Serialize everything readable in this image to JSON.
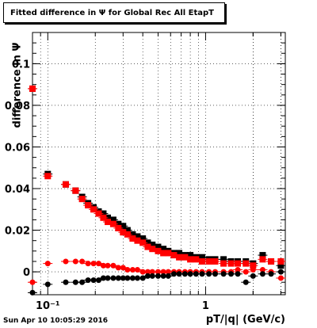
{
  "title": "Fitted difference in Ψ  for Global Rec All EtapT",
  "timestamp": "Sun Apr 10 10:05:29 2016",
  "chart_data": {
    "type": "scatter",
    "title": "Fitted difference in Ψ  for Global Rec All EtapT",
    "xlabel": "pT/|q| (GeV/c)",
    "ylabel": "difference in Ψ",
    "xscale": "log",
    "xlim": [
      0.08,
      3.2
    ],
    "ylim": [
      -0.011,
      0.115
    ],
    "grid": true,
    "y_ticks": [
      {
        "value": 0,
        "label": "0"
      },
      {
        "value": 0.02,
        "label": "0.02"
      },
      {
        "value": 0.04,
        "label": "0.04"
      },
      {
        "value": 0.06,
        "label": "0.06"
      },
      {
        "value": 0.08,
        "label": "0.08"
      },
      {
        "value": 0.1,
        "label": "0.1"
      }
    ],
    "x_ticks": [
      {
        "value": 0.1,
        "label": "10⁻¹"
      },
      {
        "value": 1,
        "label": "1"
      }
    ],
    "series": [
      {
        "color": "#000000",
        "marker": "square",
        "x": [
          0.08,
          0.1,
          0.13,
          0.15,
          0.165,
          0.18,
          0.195,
          0.21,
          0.225,
          0.24,
          0.26,
          0.28,
          0.3,
          0.32,
          0.345,
          0.37,
          0.4,
          0.43,
          0.46,
          0.5,
          0.54,
          0.58,
          0.63,
          0.68,
          0.74,
          0.8,
          0.87,
          0.95,
          1.05,
          1.15,
          1.3,
          1.45,
          1.6,
          1.8,
          2.0,
          2.3,
          2.6,
          3.0
        ],
        "y": [
          0.088,
          0.047,
          0.042,
          0.039,
          0.036,
          0.033,
          0.031,
          0.029,
          0.028,
          0.026,
          0.025,
          0.023,
          0.022,
          0.02,
          0.018,
          0.017,
          0.016,
          0.014,
          0.013,
          0.012,
          0.011,
          0.01,
          0.009,
          0.009,
          0.008,
          0.008,
          0.007,
          0.007,
          0.006,
          0.006,
          0.006,
          0.005,
          0.005,
          0.005,
          0.004,
          0.008,
          0.005,
          0.003
        ]
      },
      {
        "color": "#ff0000",
        "marker": "square",
        "x": [
          0.08,
          0.1,
          0.13,
          0.15,
          0.165,
          0.18,
          0.195,
          0.21,
          0.225,
          0.24,
          0.26,
          0.28,
          0.3,
          0.32,
          0.345,
          0.37,
          0.4,
          0.43,
          0.46,
          0.5,
          0.54,
          0.58,
          0.63,
          0.68,
          0.74,
          0.8,
          0.87,
          0.95,
          1.05,
          1.15,
          1.3,
          1.45,
          1.6,
          1.8,
          2.0,
          2.3,
          2.6,
          3.0
        ],
        "y": [
          0.088,
          0.046,
          0.042,
          0.039,
          0.035,
          0.032,
          0.03,
          0.028,
          0.026,
          0.024,
          0.023,
          0.021,
          0.019,
          0.018,
          0.016,
          0.015,
          0.014,
          0.012,
          0.011,
          0.01,
          0.009,
          0.009,
          0.008,
          0.007,
          0.007,
          0.006,
          0.006,
          0.005,
          0.005,
          0.005,
          0.004,
          0.004,
          0.004,
          0.004,
          0.003,
          0.006,
          0.005,
          0.005
        ]
      },
      {
        "color": "#ff0000",
        "marker": "circle",
        "x": [
          0.08,
          0.1,
          0.13,
          0.15,
          0.165,
          0.18,
          0.195,
          0.21,
          0.225,
          0.24,
          0.26,
          0.28,
          0.3,
          0.32,
          0.345,
          0.37,
          0.4,
          0.43,
          0.46,
          0.5,
          0.54,
          0.58,
          0.63,
          0.68,
          0.74,
          0.8,
          0.87,
          0.95,
          1.05,
          1.15,
          1.3,
          1.45,
          1.6,
          1.8,
          2.0,
          2.3,
          2.6,
          3.0
        ],
        "y": [
          -0.005,
          0.004,
          0.005,
          0.005,
          0.005,
          0.004,
          0.004,
          0.004,
          0.003,
          0.003,
          0.003,
          0.002,
          0.002,
          0.001,
          0.001,
          0.001,
          0.0,
          0.0,
          0.0,
          0.0,
          0.0,
          0.0,
          0.0,
          0.0,
          0.0,
          0.0,
          0.0,
          0.0,
          0.0,
          0.0,
          0.0,
          0.0,
          0.001,
          0.0,
          0.001,
          0.001,
          0.0,
          -0.003
        ]
      },
      {
        "color": "#000000",
        "marker": "circle",
        "x": [
          0.08,
          0.1,
          0.13,
          0.15,
          0.165,
          0.18,
          0.195,
          0.21,
          0.225,
          0.24,
          0.26,
          0.28,
          0.3,
          0.32,
          0.345,
          0.37,
          0.4,
          0.43,
          0.46,
          0.5,
          0.54,
          0.58,
          0.63,
          0.68,
          0.74,
          0.8,
          0.87,
          0.95,
          1.05,
          1.15,
          1.3,
          1.45,
          1.6,
          1.8,
          2.0,
          2.3,
          2.6,
          3.0
        ],
        "y": [
          -0.01,
          -0.006,
          -0.005,
          -0.005,
          -0.005,
          -0.004,
          -0.004,
          -0.004,
          -0.003,
          -0.003,
          -0.003,
          -0.003,
          -0.003,
          -0.003,
          -0.003,
          -0.003,
          -0.003,
          -0.002,
          -0.002,
          -0.002,
          -0.002,
          -0.002,
          -0.001,
          -0.001,
          -0.001,
          -0.001,
          -0.001,
          -0.001,
          -0.001,
          -0.001,
          -0.001,
          -0.001,
          -0.001,
          -0.005,
          -0.002,
          -0.001,
          -0.001,
          0.0
        ]
      }
    ]
  }
}
